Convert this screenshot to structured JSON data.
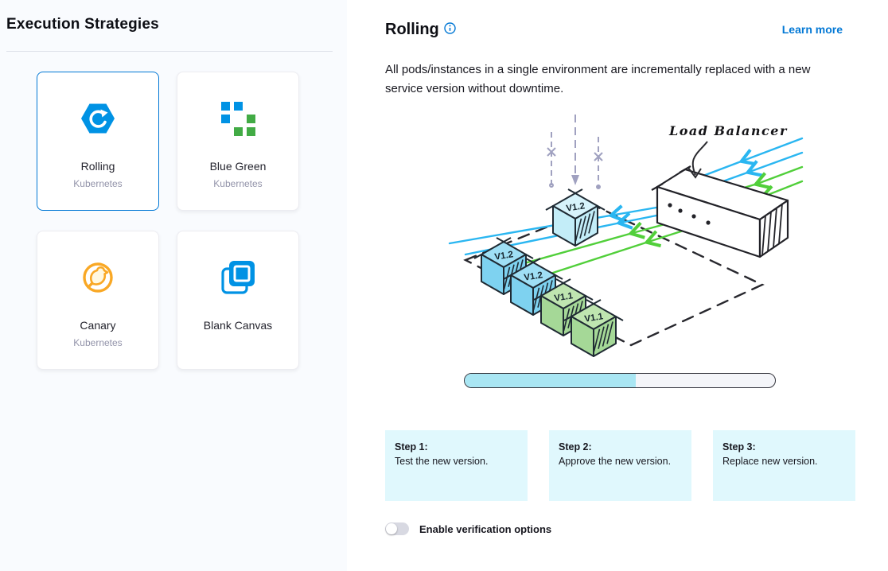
{
  "left_panel": {
    "title": "Execution Strategies",
    "cards": [
      {
        "label": "Rolling",
        "sublabel": "Kubernetes",
        "icon": "rolling-icon",
        "selected": true
      },
      {
        "label": "Blue Green",
        "sublabel": "Kubernetes",
        "icon": "blue-green-icon",
        "selected": false
      },
      {
        "label": "Canary",
        "sublabel": "Kubernetes",
        "icon": "canary-icon",
        "selected": false
      },
      {
        "label": "Blank Canvas",
        "sublabel": "",
        "icon": "blank-canvas-icon",
        "selected": false
      }
    ]
  },
  "detail_panel": {
    "title": "Rolling",
    "learn_more_label": "Learn more",
    "description": "All pods/instances in a single environment are incrementally replaced with a new service version without downtime.",
    "illustration": {
      "load_balancer_label": "Load Balancer",
      "row_cubes": [
        "V1.2",
        "V1.2",
        "V1.1",
        "V1.1"
      ],
      "row_cube_colors": [
        "blue",
        "blue",
        "green",
        "green"
      ],
      "incoming_cube_label": "V1.2",
      "incoming_cube_color": "new"
    },
    "progress": {
      "percent": 55
    },
    "steps": [
      {
        "title": "Step 1:",
        "text": "Test the new version."
      },
      {
        "title": "Step 2:",
        "text": "Approve the new version."
      },
      {
        "title": "Step 3:",
        "text": "Replace new version."
      }
    ],
    "verification_toggle": {
      "label": "Enable verification options",
      "enabled": false
    }
  },
  "colors": {
    "accent_blue": "#0278d5",
    "selected_border": "#0278d5",
    "icon_blue": "#0092e4",
    "icon_green": "#42ab45",
    "icon_orange": "#f9a825",
    "left_panel_bg": "#f9fbfe",
    "step_bg": "#e0f8fd",
    "progress_fill": "#a9e6f3",
    "arrow_blue": "#2ab6f1",
    "arrow_green": "#51cf3a",
    "cube_blue_top": "#9fdff5",
    "cube_blue_side": "#7ed2f0",
    "cube_green_top": "#bfe5b0",
    "cube_green_side": "#a5d897",
    "cube_new_top": "#d7f3fb",
    "cube_new_side": "#c3edf8"
  }
}
